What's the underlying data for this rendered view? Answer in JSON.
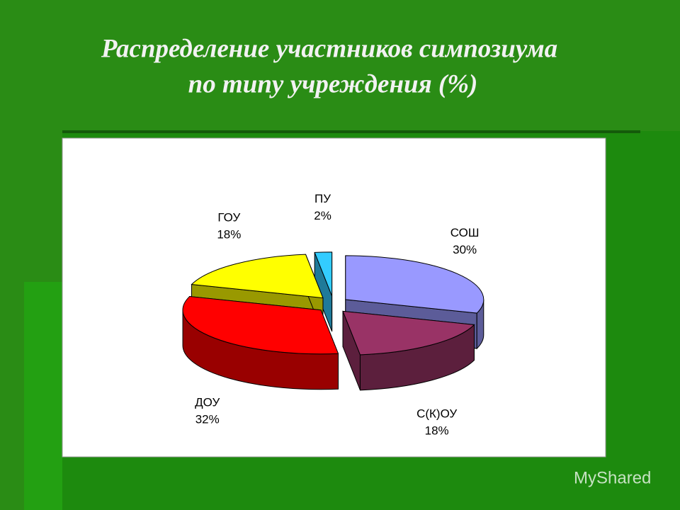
{
  "chart_data": {
    "type": "pie",
    "title": [
      "Распределение участников симпозиума",
      "по типу учреждения (%)"
    ],
    "categories": [
      "СОШ",
      "С(К)ОУ",
      "ДОУ",
      "ГОУ",
      "ПУ"
    ],
    "values": [
      30,
      18,
      32,
      18,
      2
    ],
    "value_labels": [
      "30%",
      "18%",
      "32%",
      "18%",
      "2%"
    ],
    "colors": [
      "#9999ff",
      "#993366",
      "#ff0000",
      "#ffff00",
      "#33ccff"
    ],
    "exploded": true,
    "three_d": true
  },
  "watermark": "MyShared"
}
